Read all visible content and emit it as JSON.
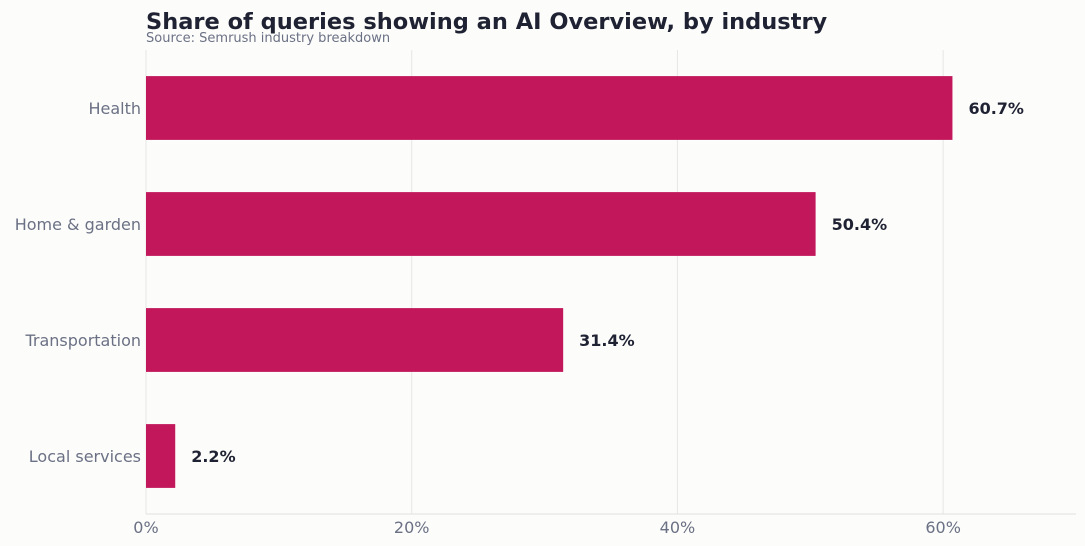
{
  "chart_data": {
    "type": "bar",
    "orientation": "horizontal",
    "title": "Share of queries showing an AI Overview, by industry",
    "subtitle": "Source: Semrush industry breakdown",
    "categories": [
      "Health",
      "Home & garden",
      "Transportation",
      "Local services"
    ],
    "values": [
      60.7,
      50.4,
      31.4,
      2.2
    ],
    "value_labels": [
      "60.7%",
      "50.4%",
      "31.4%",
      "2.2%"
    ],
    "xlim": [
      0,
      70
    ],
    "xticks": [
      0,
      20,
      40,
      60
    ],
    "xtick_labels": [
      "0%",
      "20%",
      "40%",
      "60%"
    ],
    "grid": true,
    "bar_color": "#c2185b"
  }
}
